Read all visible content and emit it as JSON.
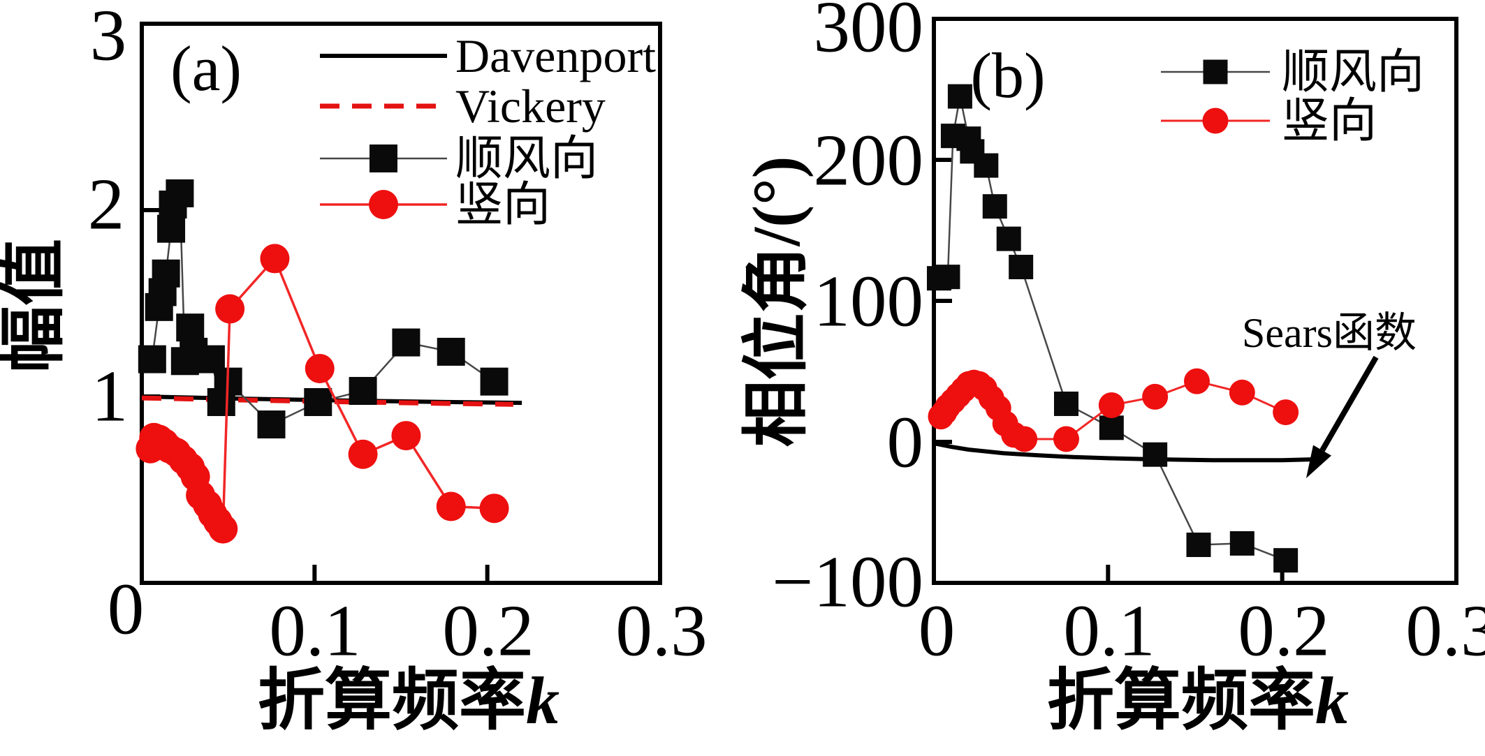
{
  "figure": {
    "panels": [
      {
        "label": "(a)",
        "ylabel": "幅值",
        "xlabel": "折算频率",
        "xlabel_var": "k",
        "yticks": [
          "0",
          "1",
          "2",
          "3"
        ],
        "xticks": [
          "0.1",
          "0.2",
          "0.3"
        ],
        "legend": [
          "Davenport",
          "Vickery",
          "顺风向",
          "竖向"
        ]
      },
      {
        "label": "(b)",
        "ylabel": "相位角/(°)",
        "xlabel": "折算频率",
        "xlabel_var": "k",
        "yticks": [
          "−100",
          "0",
          "100",
          "200",
          "300"
        ],
        "xticks": [
          "0",
          "0.1",
          "0.2",
          "0.3"
        ],
        "legend": [
          "顺风向",
          "竖向"
        ]
      }
    ]
  },
  "chart_data": [
    {
      "type": "line",
      "panel": "a",
      "title": "",
      "xlabel": "折算频率k",
      "ylabel": "幅值",
      "xlim": [
        0,
        0.3
      ],
      "ylim": [
        0,
        3
      ],
      "x_ticks": [
        0,
        0.1,
        0.2,
        0.3
      ],
      "y_ticks": [
        0,
        1,
        2,
        3
      ],
      "legend_position": "top-right-inside",
      "grid": false,
      "series": [
        {
          "name": "Davenport",
          "kind": "line",
          "points": [
            [
              0,
              1.0
            ],
            [
              0.06,
              0.988
            ],
            [
              0.12,
              0.978
            ],
            [
              0.18,
              0.97
            ],
            [
              0.22,
              0.966
            ]
          ]
        },
        {
          "name": "Vickery",
          "kind": "dashed-line",
          "points": [
            [
              0,
              0.992
            ],
            [
              0.06,
              0.981
            ],
            [
              0.12,
              0.971
            ],
            [
              0.18,
              0.962
            ],
            [
              0.215,
              0.958
            ]
          ]
        },
        {
          "name": "顺风向",
          "kind": "line-squares",
          "points": [
            [
              0.006,
              1.2
            ],
            [
              0.01,
              1.48
            ],
            [
              0.012,
              1.56
            ],
            [
              0.014,
              1.66
            ],
            [
              0.017,
              1.9
            ],
            [
              0.018,
              2.03
            ],
            [
              0.022,
              2.09
            ],
            [
              0.025,
              1.19
            ],
            [
              0.028,
              1.37
            ],
            [
              0.03,
              1.24
            ],
            [
              0.04,
              1.2
            ],
            [
              0.046,
              0.97
            ],
            [
              0.05,
              1.08
            ],
            [
              0.075,
              0.85
            ],
            [
              0.102,
              0.97
            ],
            [
              0.128,
              1.03
            ],
            [
              0.153,
              1.29
            ],
            [
              0.179,
              1.24
            ],
            [
              0.204,
              1.08
            ]
          ]
        },
        {
          "name": "竖向",
          "kind": "line-circles",
          "points": [
            [
              0.005,
              0.72
            ],
            [
              0.007,
              0.78
            ],
            [
              0.01,
              0.77
            ],
            [
              0.013,
              0.75
            ],
            [
              0.016,
              0.72
            ],
            [
              0.02,
              0.7
            ],
            [
              0.024,
              0.66
            ],
            [
              0.028,
              0.62
            ],
            [
              0.031,
              0.57
            ],
            [
              0.034,
              0.47
            ],
            [
              0.038,
              0.42
            ],
            [
              0.041,
              0.37
            ],
            [
              0.044,
              0.33
            ],
            [
              0.047,
              0.29
            ],
            [
              0.051,
              1.47
            ],
            [
              0.077,
              1.74
            ],
            [
              0.103,
              1.15
            ],
            [
              0.128,
              0.69
            ],
            [
              0.153,
              0.79
            ],
            [
              0.179,
              0.41
            ],
            [
              0.204,
              0.4
            ]
          ]
        }
      ]
    },
    {
      "type": "line",
      "panel": "b",
      "title": "",
      "xlabel": "折算频率k",
      "ylabel": "相位角/(°)",
      "xlim": [
        0,
        0.3
      ],
      "ylim": [
        -100,
        300
      ],
      "x_ticks": [
        0,
        0.1,
        0.2,
        0.3
      ],
      "y_ticks": [
        -100,
        0,
        100,
        200,
        300
      ],
      "legend_position": "top-right-inside",
      "grid": false,
      "series": [
        {
          "name": "Sears函数",
          "kind": "line",
          "points": [
            [
              0,
              -1
            ],
            [
              0.01,
              -3.5
            ],
            [
              0.02,
              -5.5
            ],
            [
              0.04,
              -8
            ],
            [
              0.06,
              -9.5
            ],
            [
              0.08,
              -10.8
            ],
            [
              0.1,
              -11.6
            ],
            [
              0.12,
              -12.2
            ],
            [
              0.14,
              -12.6
            ],
            [
              0.16,
              -13
            ],
            [
              0.18,
              -13
            ],
            [
              0.2,
              -13
            ],
            [
              0.219,
              -12.4
            ]
          ]
        },
        {
          "name": "顺风向",
          "kind": "line-squares",
          "points": [
            [
              0.003,
              116
            ],
            [
              0.008,
              117
            ],
            [
              0.011,
              217
            ],
            [
              0.015,
              245
            ],
            [
              0.02,
              215
            ],
            [
              0.022,
              206
            ],
            [
              0.03,
              196
            ],
            [
              0.035,
              167
            ],
            [
              0.043,
              144
            ],
            [
              0.05,
              124
            ],
            [
              0.076,
              27
            ],
            [
              0.102,
              10
            ],
            [
              0.127,
              -9
            ],
            [
              0.152,
              -73
            ],
            [
              0.177,
              -72
            ],
            [
              0.202,
              -84
            ]
          ]
        },
        {
          "name": "竖向",
          "kind": "line-circles",
          "points": [
            [
              0.004,
              18
            ],
            [
              0.006,
              21
            ],
            [
              0.008,
              25
            ],
            [
              0.011,
              29
            ],
            [
              0.014,
              33
            ],
            [
              0.017,
              37
            ],
            [
              0.02,
              41
            ],
            [
              0.023,
              42
            ],
            [
              0.026,
              41
            ],
            [
              0.029,
              38
            ],
            [
              0.033,
              31
            ],
            [
              0.037,
              24
            ],
            [
              0.041,
              13
            ],
            [
              0.046,
              5
            ],
            [
              0.052,
              2
            ],
            [
              0.076,
              2
            ],
            [
              0.102,
              26
            ],
            [
              0.127,
              32
            ],
            [
              0.151,
              43
            ],
            [
              0.177,
              35
            ],
            [
              0.202,
              21
            ]
          ]
        }
      ],
      "annotation": {
        "text": "Sears函数",
        "arrow_from": [
          0.2539,
          60
        ],
        "arrow_to": [
          0.223,
          -6
        ]
      }
    }
  ]
}
